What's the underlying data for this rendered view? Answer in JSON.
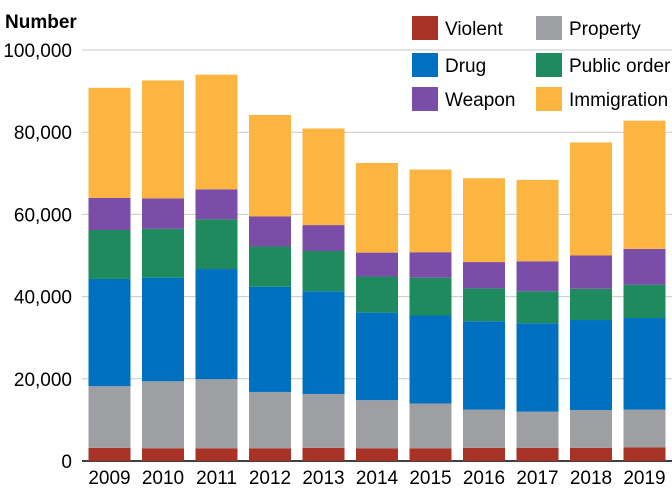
{
  "chart_data": {
    "type": "bar",
    "stacked": true,
    "ylabel": "Number",
    "ylim": [
      0,
      100000
    ],
    "yticks": [
      0,
      20000,
      40000,
      60000,
      80000,
      100000
    ],
    "ytick_labels": [
      "0",
      "20,000",
      "40,000",
      "60,000",
      "80,000",
      "100,000"
    ],
    "grid": true,
    "legend_position": "top-right",
    "categories": [
      "2009",
      "2010",
      "2011",
      "2012",
      "2013",
      "2014",
      "2015",
      "2016",
      "2017",
      "2018",
      "2019"
    ],
    "series": [
      {
        "name": "Violent",
        "color": "#a93226",
        "values": [
          3200,
          3100,
          3100,
          3100,
          3200,
          3100,
          3100,
          3200,
          3200,
          3200,
          3300
        ]
      },
      {
        "name": "Property",
        "color": "#9d9fa2",
        "values": [
          15000,
          16300,
          16800,
          13700,
          13100,
          11700,
          10900,
          9300,
          8800,
          9200,
          9200
        ]
      },
      {
        "name": "Drug",
        "color": "#0070c0",
        "values": [
          26100,
          25200,
          26800,
          25600,
          25000,
          21300,
          21400,
          21500,
          21500,
          21900,
          22300
        ]
      },
      {
        "name": "Public order",
        "color": "#1e8a5e",
        "values": [
          11900,
          11900,
          12100,
          9800,
          9800,
          8800,
          9200,
          8000,
          7800,
          7600,
          8100
        ]
      },
      {
        "name": "Weapon",
        "color": "#7a4da8",
        "values": [
          7800,
          7400,
          7300,
          7300,
          6300,
          5800,
          6200,
          6400,
          7300,
          8100,
          8700
        ]
      },
      {
        "name": "Immigration",
        "color": "#fbb540",
        "values": [
          26800,
          28700,
          27900,
          24700,
          23500,
          21800,
          20100,
          20400,
          19800,
          27500,
          31200
        ]
      }
    ]
  }
}
